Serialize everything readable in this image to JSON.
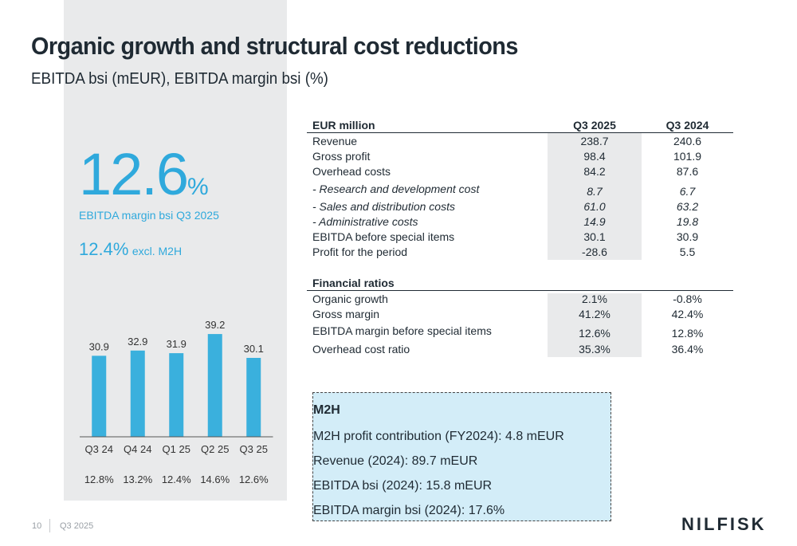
{
  "slide": {
    "title": "Organic growth and structural cost reductions",
    "subtitle": "EBITDA bsi (mEUR), EBITDA margin bsi (%)"
  },
  "kpi": {
    "value": "12.6",
    "unit": "%",
    "label": "EBITDA margin bsi Q3 2025",
    "secondary_value": "12.4%",
    "secondary_note": "excl. M2H"
  },
  "chart_data": {
    "type": "bar",
    "title": "",
    "xlabel": "",
    "ylabel": "",
    "categories": [
      "Q3 24",
      "Q4 24",
      "Q1 25",
      "Q2 25",
      "Q3 25"
    ],
    "values": [
      30.9,
      32.9,
      31.9,
      39.2,
      30.1
    ],
    "value_labels": [
      "30.9",
      "32.9",
      "31.9",
      "39.2",
      "30.1"
    ],
    "margins": [
      "12.8%",
      "13.2%",
      "12.4%",
      "14.6%",
      "12.6%"
    ],
    "ylim": [
      0,
      45
    ],
    "color": "#3ab0dd",
    "grid": false
  },
  "table": {
    "header": {
      "label": "EUR million",
      "col1": "Q3 2025",
      "col2": "Q3 2024"
    },
    "rows": [
      {
        "label": "Revenue",
        "v1": "238.7",
        "v2": "240.6",
        "italic": false
      },
      {
        "label": "Gross profit",
        "v1": "98.4",
        "v2": "101.9",
        "italic": false
      },
      {
        "label": "Overhead costs",
        "v1": "84.2",
        "v2": "87.6",
        "italic": false
      },
      {
        "label": "- Research and development cost",
        "v1": "8.7",
        "v2": "6.7",
        "italic": true
      },
      {
        "label": "- Sales and distribution costs",
        "v1": "61.0",
        "v2": "63.2",
        "italic": true
      },
      {
        "label": "- Administrative costs",
        "v1": "14.9",
        "v2": "19.8",
        "italic": true
      },
      {
        "label": "EBITDA before special items",
        "v1": "30.1",
        "v2": "30.9",
        "italic": false
      },
      {
        "label": "Profit for the period",
        "v1": "-28.6",
        "v2": "5.5",
        "italic": false
      }
    ],
    "ratios_header": "Financial ratios",
    "ratios": [
      {
        "label": "Organic growth",
        "v1": "2.1%",
        "v2": "-0.8%"
      },
      {
        "label": "Gross margin",
        "v1": "41.2%",
        "v2": "42.4%"
      },
      {
        "label": "EBITDA margin before special items",
        "v1": "12.6%",
        "v2": "12.8%"
      },
      {
        "label": "Overhead cost ratio",
        "v1": "35.3%",
        "v2": "36.4%"
      }
    ]
  },
  "m2h": {
    "title": "M2H",
    "lines": [
      "M2H profit contribution (FY2024): 4.8 mEUR",
      "Revenue (2024): 89.7 mEUR",
      "EBITDA bsi (2024): 15.8 mEUR",
      "EBITDA margin bsi (2024): 17.6%"
    ]
  },
  "footer": {
    "page_number": "10",
    "period": "Q3 2025",
    "logo": "NILFISK"
  }
}
